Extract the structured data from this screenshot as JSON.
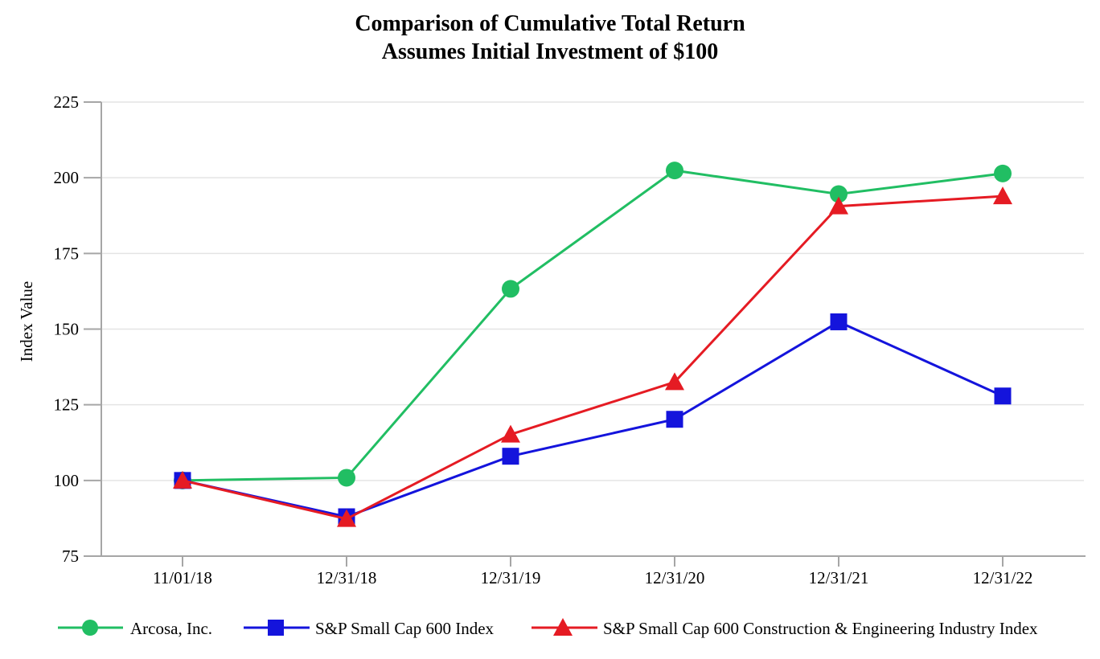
{
  "chart_data": {
    "type": "line",
    "title": "Comparison of Cumulative Total Return",
    "subtitle": "Assumes Initial Investment of $100",
    "xlabel": "",
    "ylabel": "Index Value",
    "ylim": [
      75,
      225
    ],
    "y_ticks": [
      75,
      100,
      125,
      150,
      175,
      200,
      225
    ],
    "grid": "horizontal",
    "legend_position": "bottom",
    "categories": [
      "11/01/18",
      "12/31/18",
      "12/31/19",
      "12/31/20",
      "12/31/21",
      "12/31/22"
    ],
    "series": [
      {
        "name": "Arcosa, Inc.",
        "marker": "circle",
        "color": "#21be63",
        "values": [
          100.0,
          100.9,
          163.3,
          202.4,
          194.6,
          201.4
        ]
      },
      {
        "name": "S&P Small Cap 600 Index",
        "marker": "square",
        "color": "#1414dc",
        "values": [
          100.0,
          88.0,
          108.0,
          120.2,
          152.4,
          127.9
        ]
      },
      {
        "name": "S&P Small Cap 600 Construction & Engineering Industry Index",
        "marker": "triangle",
        "color": "#e51b23",
        "values": [
          100.0,
          87.3,
          115.2,
          132.5,
          190.6,
          193.9
        ]
      }
    ],
    "axis_color": "#a6a6a6",
    "gridline_color": "#e4e4e4"
  }
}
